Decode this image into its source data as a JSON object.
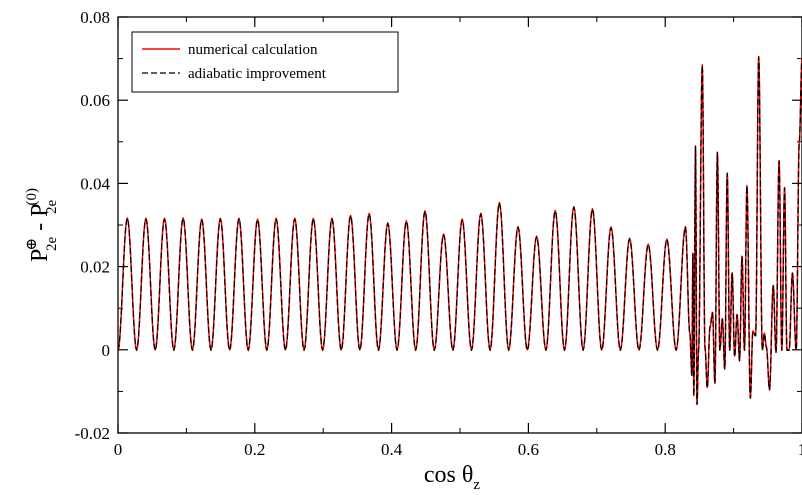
{
  "chart_data": {
    "type": "line",
    "title": "",
    "xlabel": {
      "main": "cos θ",
      "sub": "z"
    },
    "ylabel": {
      "p1": "P",
      "sup1": "⊕",
      "sub1": "2e",
      "minus": " - ",
      "p2": "P",
      "sup2": "(0)",
      "sub2": "2e"
    },
    "xlim": [
      0,
      1
    ],
    "ylim": [
      -0.02,
      0.08
    ],
    "x_ticks": [
      0,
      0.2,
      0.4,
      0.6,
      0.8,
      1
    ],
    "x_tick_labels": [
      "0",
      "0.2",
      "0.4",
      "0.6",
      "0.8",
      "1"
    ],
    "y_ticks": [
      -0.02,
      0,
      0.02,
      0.04,
      0.06,
      0.08
    ],
    "y_tick_labels": [
      "-0.02",
      "0",
      "0.02",
      "0.04",
      "0.06",
      "0.08"
    ],
    "grid": false,
    "legend_position": "top-left",
    "series": [
      {
        "name": "numerical calculation",
        "color": "#ff0000",
        "style": "solid"
      },
      {
        "name": "adiabatic improvement",
        "color": "#000000",
        "style": "dashed"
      }
    ],
    "peaks": [
      {
        "x": 0.0,
        "y": 0.0
      },
      {
        "x": 0.0136,
        "y": 0.0317
      },
      {
        "x": 0.0272,
        "y": 0.0
      },
      {
        "x": 0.0408,
        "y": 0.0316
      },
      {
        "x": 0.0544,
        "y": 0.0
      },
      {
        "x": 0.068,
        "y": 0.0316
      },
      {
        "x": 0.0816,
        "y": 0.0
      },
      {
        "x": 0.0952,
        "y": 0.0317
      },
      {
        "x": 0.1088,
        "y": 0.0
      },
      {
        "x": 0.1224,
        "y": 0.0314
      },
      {
        "x": 0.136,
        "y": 0.0
      },
      {
        "x": 0.1496,
        "y": 0.0316
      },
      {
        "x": 0.1632,
        "y": 0.0
      },
      {
        "x": 0.1768,
        "y": 0.0316
      },
      {
        "x": 0.1904,
        "y": 0.0
      },
      {
        "x": 0.204,
        "y": 0.0314
      },
      {
        "x": 0.2176,
        "y": 0.0
      },
      {
        "x": 0.2312,
        "y": 0.0316
      },
      {
        "x": 0.2448,
        "y": 0.0
      },
      {
        "x": 0.2584,
        "y": 0.0316
      },
      {
        "x": 0.272,
        "y": 0.0
      },
      {
        "x": 0.2856,
        "y": 0.0316
      },
      {
        "x": 0.2992,
        "y": 0.0
      },
      {
        "x": 0.3128,
        "y": 0.0316
      },
      {
        "x": 0.3264,
        "y": 0.0
      },
      {
        "x": 0.34,
        "y": 0.0323
      },
      {
        "x": 0.3536,
        "y": 0.0
      },
      {
        "x": 0.3672,
        "y": 0.0328
      },
      {
        "x": 0.3808,
        "y": 0.0
      },
      {
        "x": 0.3944,
        "y": 0.0305
      },
      {
        "x": 0.408,
        "y": 0.0
      },
      {
        "x": 0.4216,
        "y": 0.031
      },
      {
        "x": 0.4352,
        "y": 0.0
      },
      {
        "x": 0.4488,
        "y": 0.0334
      },
      {
        "x": 0.4624,
        "y": 0.0
      },
      {
        "x": 0.476,
        "y": 0.0278
      },
      {
        "x": 0.4896,
        "y": 0.0
      },
      {
        "x": 0.5032,
        "y": 0.0314
      },
      {
        "x": 0.5168,
        "y": 0.0
      },
      {
        "x": 0.5304,
        "y": 0.0328
      },
      {
        "x": 0.544,
        "y": 0.0
      },
      {
        "x": 0.5576,
        "y": 0.0354
      },
      {
        "x": 0.5712,
        "y": 0.0
      },
      {
        "x": 0.5848,
        "y": 0.0296
      },
      {
        "x": 0.5984,
        "y": 0.0
      },
      {
        "x": 0.612,
        "y": 0.0273
      },
      {
        "x": 0.6256,
        "y": 0.0
      },
      {
        "x": 0.6392,
        "y": 0.0335
      },
      {
        "x": 0.6528,
        "y": 0.0
      },
      {
        "x": 0.6664,
        "y": 0.0344
      },
      {
        "x": 0.68,
        "y": 0.0
      },
      {
        "x": 0.6936,
        "y": 0.0339
      },
      {
        "x": 0.7072,
        "y": 0.0
      },
      {
        "x": 0.7208,
        "y": 0.0295
      },
      {
        "x": 0.7344,
        "y": 0.0
      },
      {
        "x": 0.748,
        "y": 0.0268
      },
      {
        "x": 0.7616,
        "y": 0.0
      },
      {
        "x": 0.7752,
        "y": 0.0254
      },
      {
        "x": 0.7888,
        "y": 0.0
      },
      {
        "x": 0.8024,
        "y": 0.0266
      },
      {
        "x": 0.816,
        "y": 0.0
      },
      {
        "x": 0.8296,
        "y": 0.0296
      },
      {
        "x": 0.836,
        "y": 0.004
      },
      {
        "x": 0.839,
        "y": -0.006
      },
      {
        "x": 0.8405,
        "y": 0.0232
      },
      {
        "x": 0.8418,
        "y": -0.011
      },
      {
        "x": 0.8443,
        "y": 0.049
      },
      {
        "x": 0.8465,
        "y": -0.013
      },
      {
        "x": 0.8488,
        "y": 0.0
      },
      {
        "x": 0.8542,
        "y": 0.0685
      },
      {
        "x": 0.8582,
        "y": 0.0005
      },
      {
        "x": 0.8615,
        "y": -0.009
      },
      {
        "x": 0.8655,
        "y": 0.0055
      },
      {
        "x": 0.8692,
        "y": 0.009
      },
      {
        "x": 0.8727,
        "y": -0.008
      },
      {
        "x": 0.8763,
        "y": 0.0475
      },
      {
        "x": 0.8799,
        "y": 0.0
      },
      {
        "x": 0.8835,
        "y": 0.0075
      },
      {
        "x": 0.8871,
        "y": -0.0045
      },
      {
        "x": 0.8907,
        "y": 0.0425
      },
      {
        "x": 0.8943,
        "y": 0.0
      },
      {
        "x": 0.8979,
        "y": 0.0185
      },
      {
        "x": 0.9015,
        "y": -0.0015
      },
      {
        "x": 0.9051,
        "y": 0.0085
      },
      {
        "x": 0.9087,
        "y": -0.0025
      },
      {
        "x": 0.9123,
        "y": 0.0225
      },
      {
        "x": 0.9159,
        "y": 0.0
      },
      {
        "x": 0.9195,
        "y": 0.0395
      },
      {
        "x": 0.9245,
        "y": -0.0115
      },
      {
        "x": 0.9282,
        "y": 0.0045
      },
      {
        "x": 0.9322,
        "y": 0.0035
      },
      {
        "x": 0.9367,
        "y": 0.0705
      },
      {
        "x": 0.942,
        "y": 0.0
      },
      {
        "x": 0.945,
        "y": 0.004
      },
      {
        "x": 0.948,
        "y": 0.0007
      },
      {
        "x": 0.9525,
        "y": -0.0095
      },
      {
        "x": 0.958,
        "y": 0.0155
      },
      {
        "x": 0.962,
        "y": -0.0005
      },
      {
        "x": 0.9665,
        "y": 0.0455
      },
      {
        "x": 0.9705,
        "y": 0.0
      },
      {
        "x": 0.9745,
        "y": 0.039
      },
      {
        "x": 0.978,
        "y": 0.0
      },
      {
        "x": 0.9812,
        "y": 0.0
      },
      {
        "x": 0.986,
        "y": 0.0185
      },
      {
        "x": 0.9915,
        "y": 0.0
      },
      {
        "x": 0.996,
        "y": 0.05
      },
      {
        "x": 1.0,
        "y": 0.07
      }
    ]
  }
}
